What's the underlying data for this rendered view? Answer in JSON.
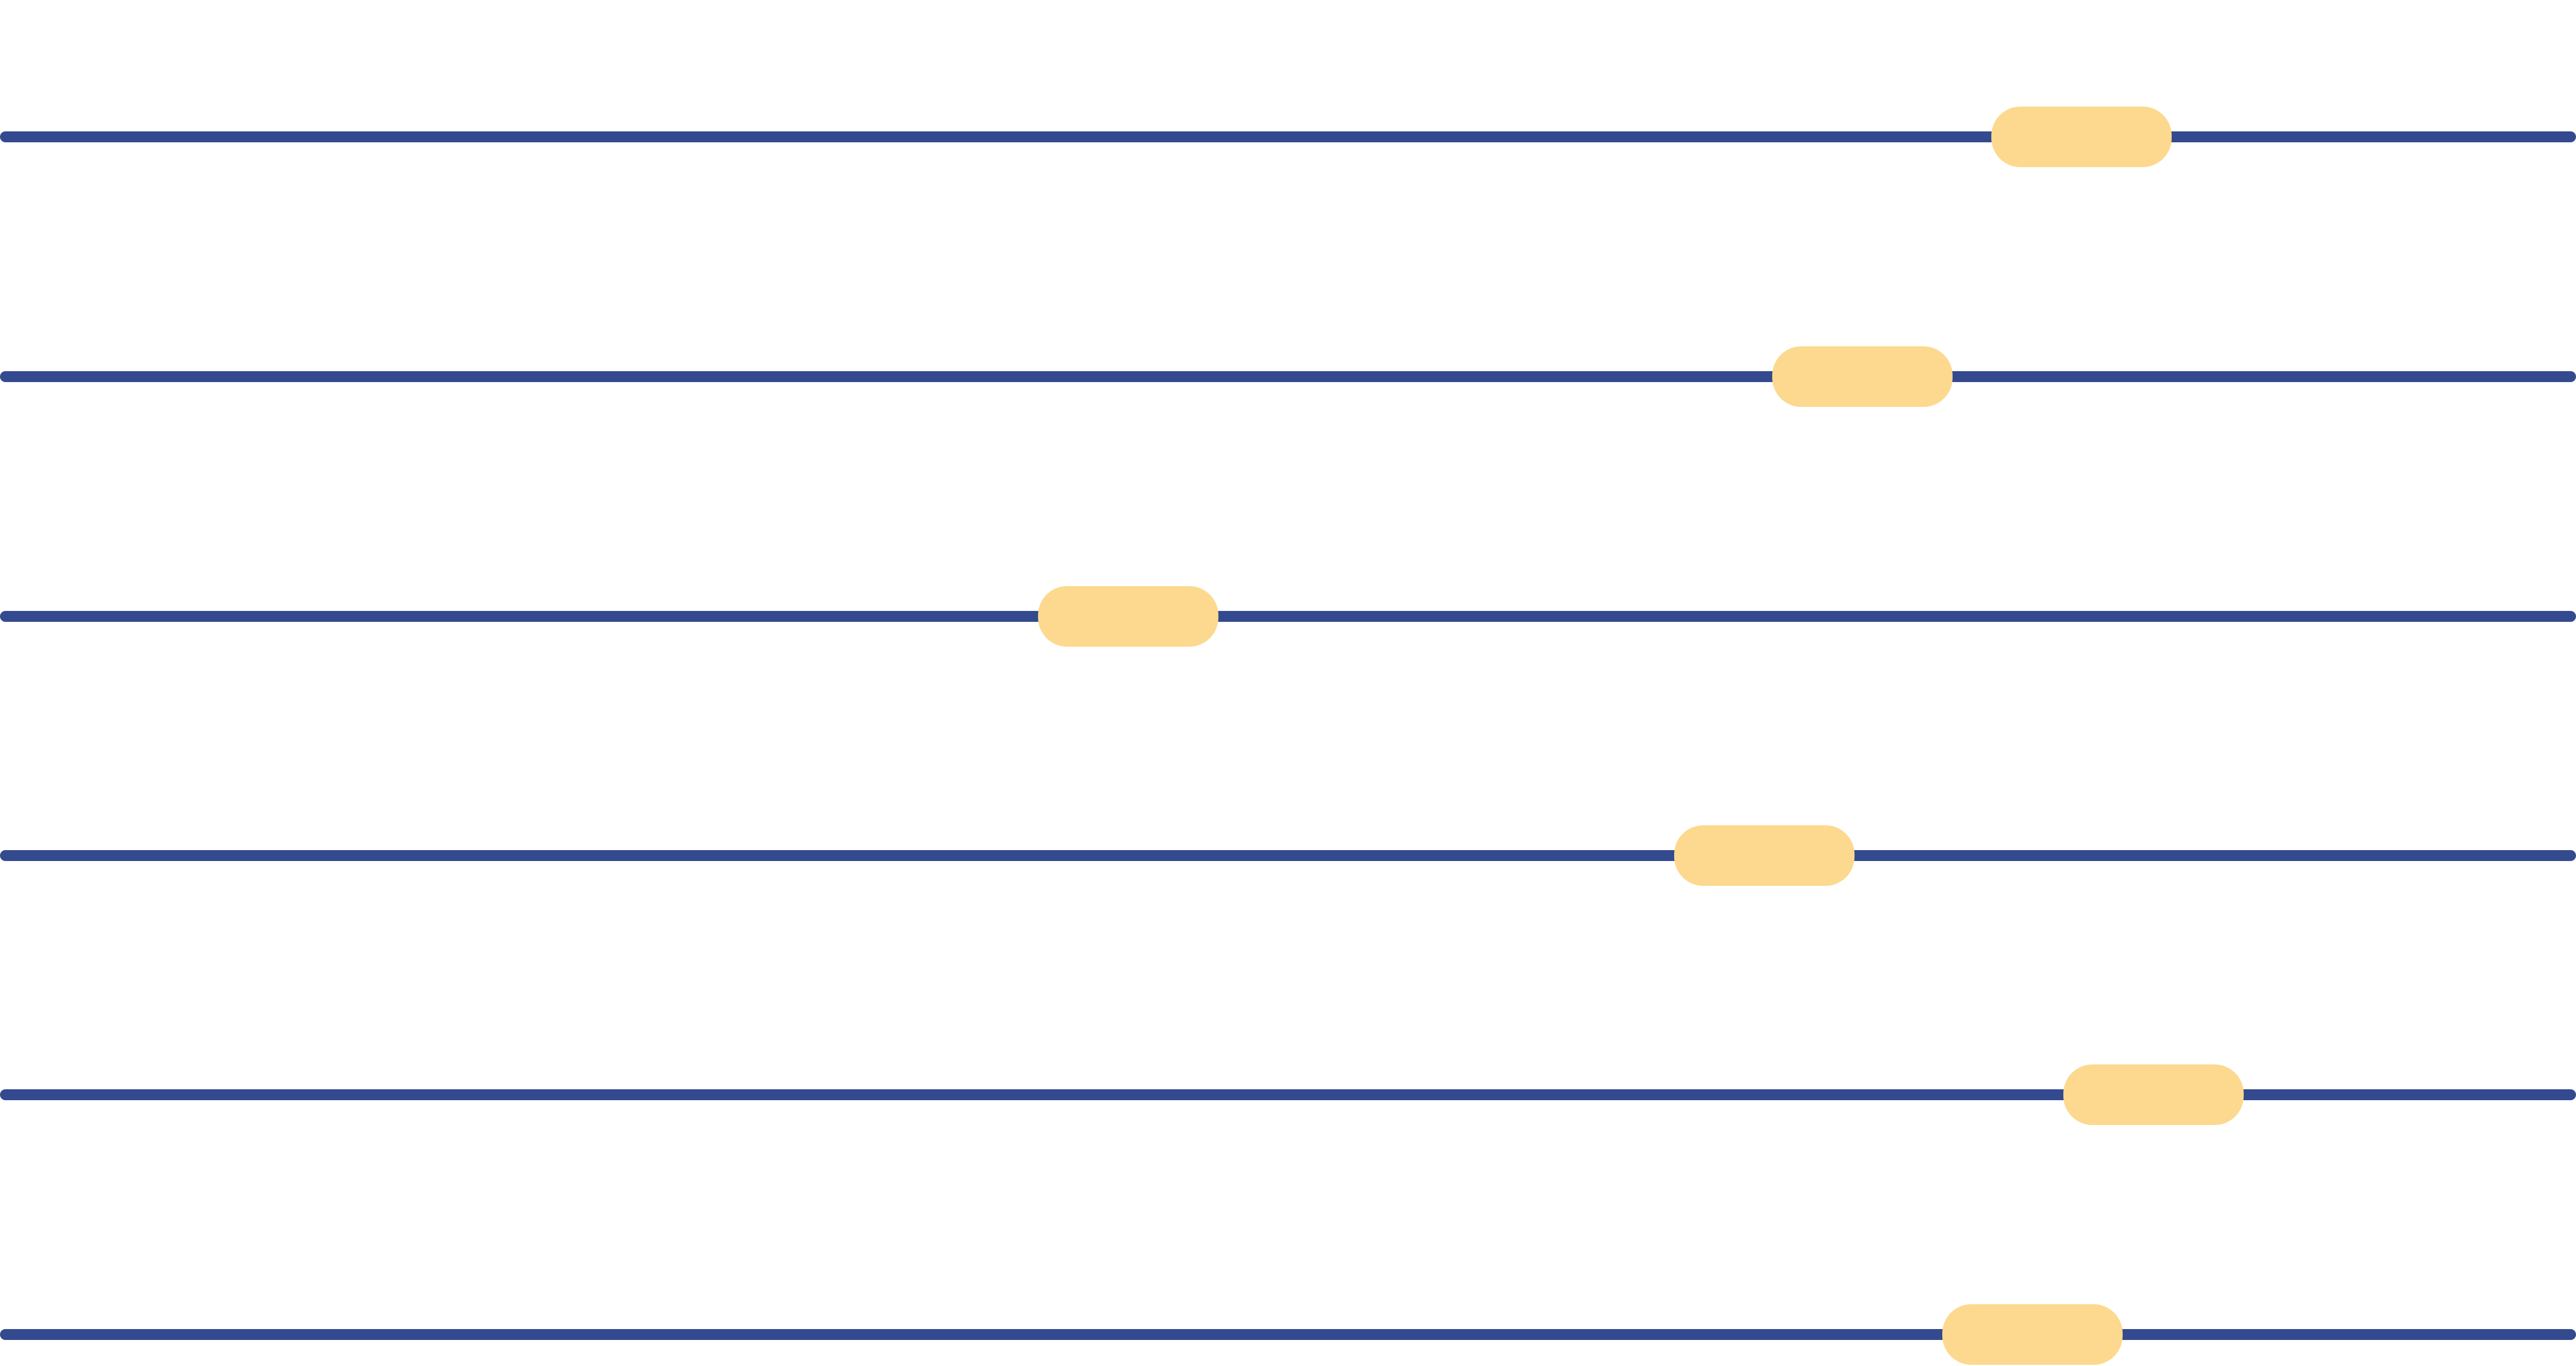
{
  "colors": {
    "track": "#334a8e",
    "thumb": "#fcd98e",
    "background": "#ffffff"
  },
  "sliders": [
    {
      "value": 0.808
    },
    {
      "value": 0.723
    },
    {
      "value": 0.438
    },
    {
      "value": 0.685
    },
    {
      "value": 0.836
    },
    {
      "value": 0.789
    }
  ]
}
